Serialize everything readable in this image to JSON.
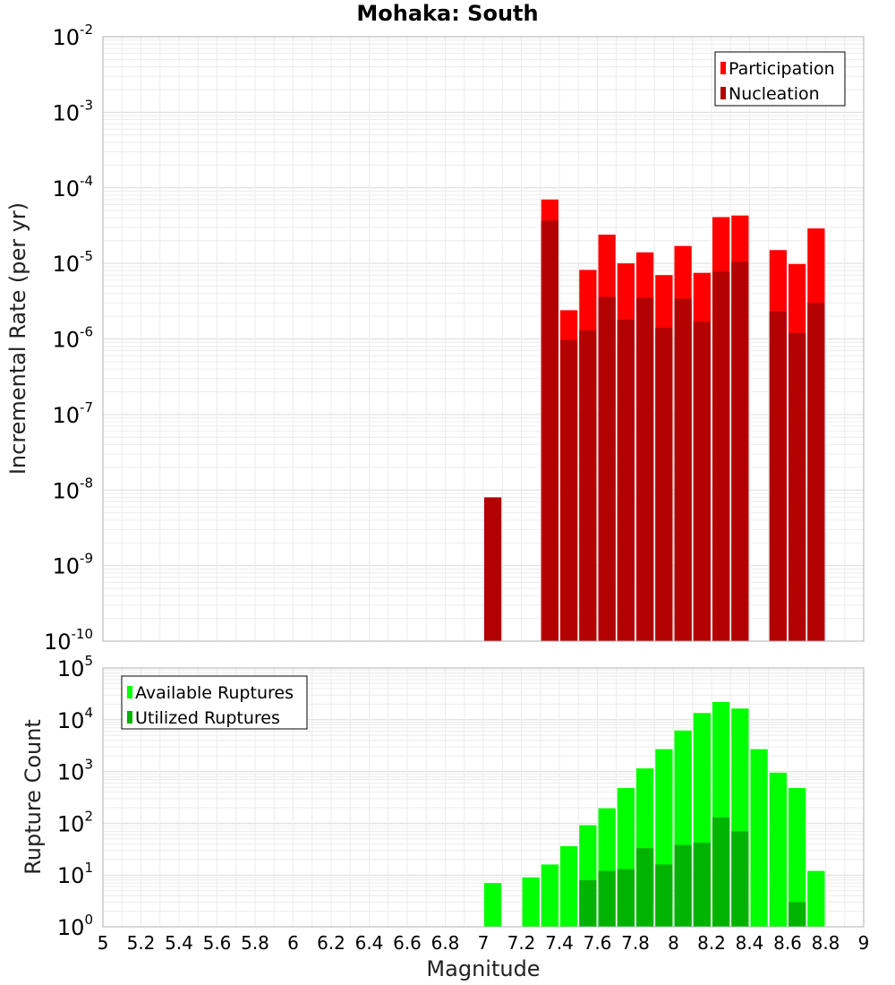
{
  "chart_data": [
    {
      "type": "bar",
      "title": "Mohaka: South",
      "xlabel": "",
      "ylabel": "Incremental Rate (per yr)",
      "yscale": "log",
      "ylim_exponents": [
        -10,
        -2
      ],
      "xlim": [
        5,
        9
      ],
      "bar_width": 0.1,
      "legend_position": "top-right",
      "grid": true,
      "colors": {
        "Participation": "#ff0000",
        "Nucleation": "#b30000"
      },
      "series": [
        {
          "name": "Participation",
          "x": [
            7.35,
            7.45,
            7.55,
            7.65,
            7.75,
            7.85,
            7.95,
            8.05,
            8.15,
            8.25,
            8.35,
            8.55,
            8.65,
            8.75
          ],
          "values": [
            7e-05,
            2.4e-06,
            8.2e-06,
            2.4e-05,
            1e-05,
            1.4e-05,
            7e-06,
            1.7e-05,
            7.5e-06,
            4.1e-05,
            4.3e-05,
            1.5e-05,
            9.8e-06,
            2.9e-05
          ]
        },
        {
          "name": "Nucleation",
          "x": [
            7.05,
            7.35,
            7.45,
            7.55,
            7.65,
            7.75,
            7.85,
            7.95,
            8.05,
            8.15,
            8.25,
            8.35,
            8.55,
            8.65,
            8.75
          ],
          "values": [
            8e-09,
            3.7e-05,
            9.7e-07,
            1.3e-06,
            3.6e-06,
            1.8e-06,
            3.5e-06,
            1.4e-06,
            3.4e-06,
            1.7e-06,
            7.8e-06,
            1.05e-05,
            2.3e-06,
            1.2e-06,
            3e-06
          ]
        }
      ]
    },
    {
      "type": "bar",
      "title": "",
      "xlabel": "Magnitude",
      "ylabel": "Rupture Count",
      "yscale": "log",
      "ylim_exponents": [
        0,
        5
      ],
      "xlim": [
        5,
        9
      ],
      "bar_width": 0.1,
      "legend_position": "top-left",
      "grid": true,
      "xticks": [
        "5",
        "5.2",
        "5.4",
        "5.6",
        "5.8",
        "6",
        "6.2",
        "6.4",
        "6.6",
        "6.8",
        "7",
        "7.2",
        "7.4",
        "7.6",
        "7.8",
        "8",
        "8.2",
        "8.4",
        "8.6",
        "8.8",
        "9"
      ],
      "colors": {
        "Available Ruptures": "#00ff00",
        "Utilized Ruptures": "#00b300"
      },
      "series": [
        {
          "name": "Available Ruptures",
          "x": [
            7.05,
            7.25,
            7.35,
            7.45,
            7.55,
            7.65,
            7.75,
            7.85,
            7.95,
            8.05,
            8.15,
            8.25,
            8.35,
            8.45,
            8.55,
            8.65,
            8.75
          ],
          "values": [
            7,
            9,
            16,
            36,
            92,
            195,
            480,
            1150,
            2700,
            6200,
            13500,
            22000,
            16500,
            2700,
            950,
            480,
            12
          ]
        },
        {
          "name": "Utilized Ruptures",
          "x": [
            7.05,
            7.35,
            7.45,
            7.55,
            7.65,
            7.75,
            7.85,
            7.95,
            8.05,
            8.15,
            8.25,
            8.35,
            8.45,
            8.55,
            8.65,
            8.75
          ],
          "values": [
            1,
            1,
            1,
            8,
            12,
            13,
            33,
            16,
            38,
            42,
            130,
            70,
            1,
            1,
            3,
            1
          ]
        }
      ]
    }
  ]
}
